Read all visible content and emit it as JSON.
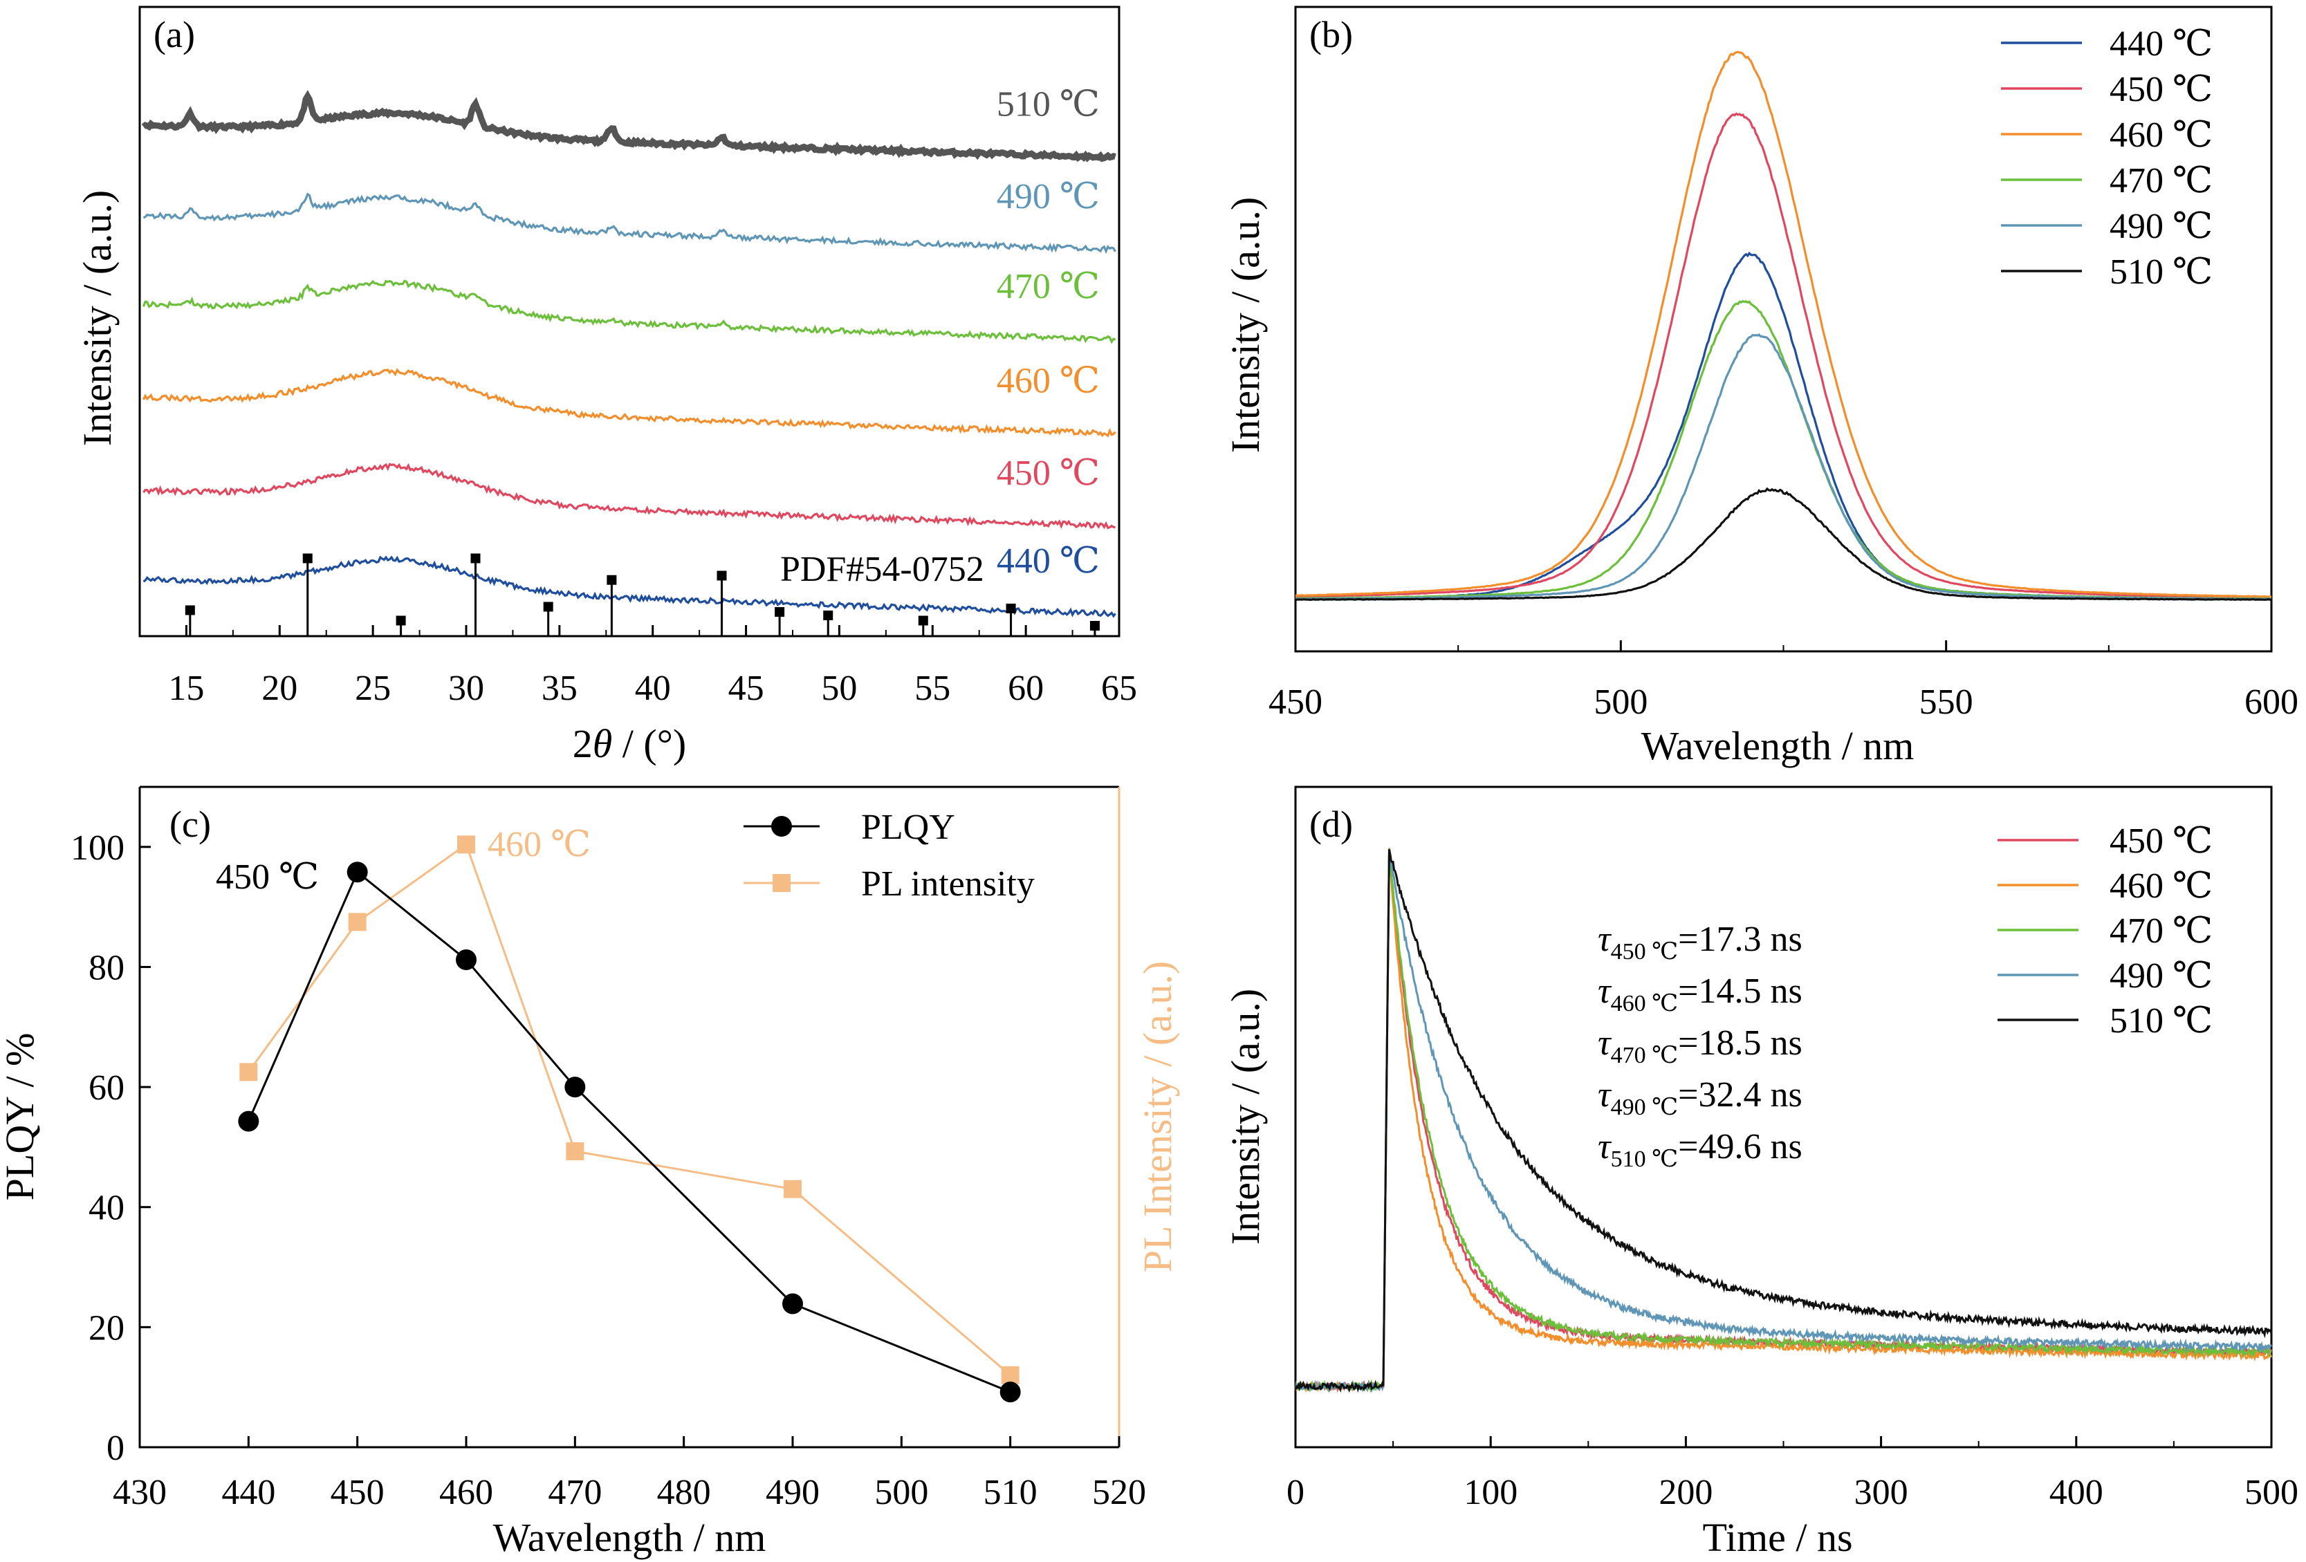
{
  "panels": {
    "a": {
      "label": "(a)",
      "xlabel_pre": "2",
      "xlabel_theta": "θ",
      "xlabel_post": " / (°)",
      "ylabel": "Intensity / (a.u.)",
      "pdf_label": "PDF#54-0752"
    },
    "b": {
      "label": "(b)",
      "xlabel": "Wavelength / nm",
      "ylabel": "Intensity / (a.u.)"
    },
    "c": {
      "label": "(c)",
      "xlabel": "Wavelength / nm",
      "ylabel": "PLQY / %",
      "ylabel_right": "PL Intensity / (a.u.)",
      "anno_450": "450 ℃",
      "anno_460": "460 ℃"
    },
    "d": {
      "label": "(d)",
      "xlabel": "Time / ns",
      "ylabel": "Intensity / (a.u.)",
      "taus": [
        {
          "sub": "450 ℃",
          "val": "=17.3 ns"
        },
        {
          "sub": "460 ℃",
          "val": "=14.5 ns"
        },
        {
          "sub": "470 ℃",
          "val": "=18.5 ns"
        },
        {
          "sub": "490 ℃",
          "val": "=32.4 ns"
        },
        {
          "sub": "510 ℃",
          "val": "=49.6 ns"
        }
      ]
    }
  },
  "colors": {
    "c440": "#1f4e9c",
    "c450": "#e0485f",
    "c460": "#f28e2b",
    "c470": "#6cbf3a",
    "c490": "#5f96b6",
    "c510": "#111111",
    "c510a": "#555555",
    "plqy": "#000000",
    "pl": "#f5bd85"
  },
  "chart_data": [
    {
      "panel": "a",
      "type": "line",
      "xlabel": "2θ / (°)",
      "ylabel": "Intensity / (a.u.)",
      "xlim": [
        12.5,
        65
      ],
      "xticks": [
        15,
        20,
        25,
        30,
        35,
        40,
        45,
        50,
        55,
        60,
        65
      ],
      "series": [
        {
          "name": "510 ℃",
          "color_key": "c510a",
          "baseline": 0.9,
          "offset": 0.855,
          "hump": 0.05,
          "peaks": [
            [
              15.2,
              0.03
            ],
            [
              21.5,
              0.055
            ],
            [
              30.5,
              0.05
            ],
            [
              37.8,
              0.035
            ],
            [
              43.7,
              0.02
            ]
          ]
        },
        {
          "name": "490 ℃",
          "color_key": "c490",
          "baseline": 0.64,
          "offset": 0.64,
          "hump": 0.065,
          "peaks": [
            [
              15.2,
              0.015
            ],
            [
              21.5,
              0.03
            ],
            [
              30.5,
              0.022
            ],
            [
              37.8,
              0.018
            ],
            [
              43.7,
              0.015
            ]
          ]
        },
        {
          "name": "470 ℃",
          "color_key": "c470",
          "baseline": 0.42,
          "offset": 0.43,
          "hump": 0.075,
          "peaks": [
            [
              15.2,
              0.012
            ],
            [
              21.5,
              0.02
            ],
            [
              30.5,
              0.012
            ],
            [
              37.8,
              0.01
            ],
            [
              43.7,
              0.01
            ]
          ]
        },
        {
          "name": "460 ℃",
          "color_key": "c460",
          "baseline": 0.19,
          "offset": 0.21,
          "hump": 0.085,
          "peaks": []
        },
        {
          "name": "450 ℃",
          "color_key": "c450",
          "baseline": -0.03,
          "offset": -0.005,
          "hump": 0.08,
          "peaks": []
        },
        {
          "name": "440 ℃",
          "color_key": "c440",
          "baseline": -0.23,
          "offset": -0.21,
          "hump": 0.07,
          "peaks": []
        }
      ],
      "reference": {
        "name": "PDF#54-0752",
        "positions": [
          15.2,
          21.5,
          26.5,
          30.5,
          34.4,
          37.8,
          43.7,
          46.8,
          49.4,
          54.5,
          59.2,
          63.7
        ],
        "heights": [
          0.3,
          0.9,
          0.18,
          0.9,
          0.34,
          0.65,
          0.7,
          0.28,
          0.24,
          0.18,
          0.32,
          0.12
        ]
      }
    },
    {
      "panel": "b",
      "type": "line",
      "xlabel": "Wavelength / nm",
      "ylabel": "Intensity / (a.u.)",
      "xlim": [
        450,
        600
      ],
      "xticks": [
        450,
        500,
        550,
        600
      ],
      "series": [
        {
          "name": "440 ℃",
          "color_key": "c440",
          "peak": 520,
          "height": 0.62,
          "width": 11,
          "shoulder": 0.08
        },
        {
          "name": "450 ℃",
          "color_key": "c450",
          "peak": 518,
          "height": 0.88,
          "width": 13,
          "shoulder": 0.0
        },
        {
          "name": "460 ℃",
          "color_key": "c460",
          "peak": 518,
          "height": 0.99,
          "width": 14,
          "shoulder": 0.0
        },
        {
          "name": "470 ℃",
          "color_key": "c470",
          "peak": 519,
          "height": 0.54,
          "width": 12,
          "shoulder": 0.0
        },
        {
          "name": "490 ℃",
          "color_key": "c490",
          "peak": 521,
          "height": 0.48,
          "width": 11,
          "shoulder": 0.0
        },
        {
          "name": "510 ℃",
          "color_key": "c510",
          "peak": 523,
          "height": 0.2,
          "width": 12,
          "shoulder": 0.0
        }
      ]
    },
    {
      "panel": "c",
      "type": "line",
      "xlabel": "Wavelength / nm",
      "ylabel": "PLQY / %",
      "ylabel_right": "PL Intensity / (a.u.)",
      "xlim": [
        430,
        520
      ],
      "ylim": [
        0,
        110
      ],
      "xticks": [
        430,
        440,
        450,
        460,
        470,
        480,
        490,
        500,
        510,
        520
      ],
      "yticks": [
        0,
        20,
        40,
        60,
        80,
        100
      ],
      "x": [
        440,
        450,
        460,
        470,
        490,
        510
      ],
      "series": [
        {
          "name": "PLQY",
          "color_key": "plqy",
          "marker": "circle",
          "values": [
            54.3,
            95.8,
            81.2,
            60,
            23.9,
            9.2
          ]
        },
        {
          "name": "PL intensity",
          "color_key": "pl",
          "marker": "square",
          "values": [
            62.5,
            87.5,
            100.4,
            49.3,
            43,
            12
          ]
        }
      ]
    },
    {
      "panel": "d",
      "type": "line",
      "xlabel": "Time / ns",
      "ylabel": "Intensity / (a.u.)",
      "xlim": [
        0,
        500
      ],
      "xticks": [
        0,
        100,
        200,
        300,
        400,
        500
      ],
      "series": [
        {
          "name": "450 ℃",
          "color_key": "c450",
          "tau": 17.3,
          "tail": 0.1
        },
        {
          "name": "460 ℃",
          "color_key": "c460",
          "tau": 14.5,
          "tail": 0.09
        },
        {
          "name": "470 ℃",
          "color_key": "c470",
          "tau": 18.5,
          "tail": 0.1
        },
        {
          "name": "490 ℃",
          "color_key": "c490",
          "tau": 32.4,
          "tail": 0.115
        },
        {
          "name": "510 ℃",
          "color_key": "c510",
          "tau": 49.6,
          "tail": 0.16
        }
      ]
    }
  ]
}
